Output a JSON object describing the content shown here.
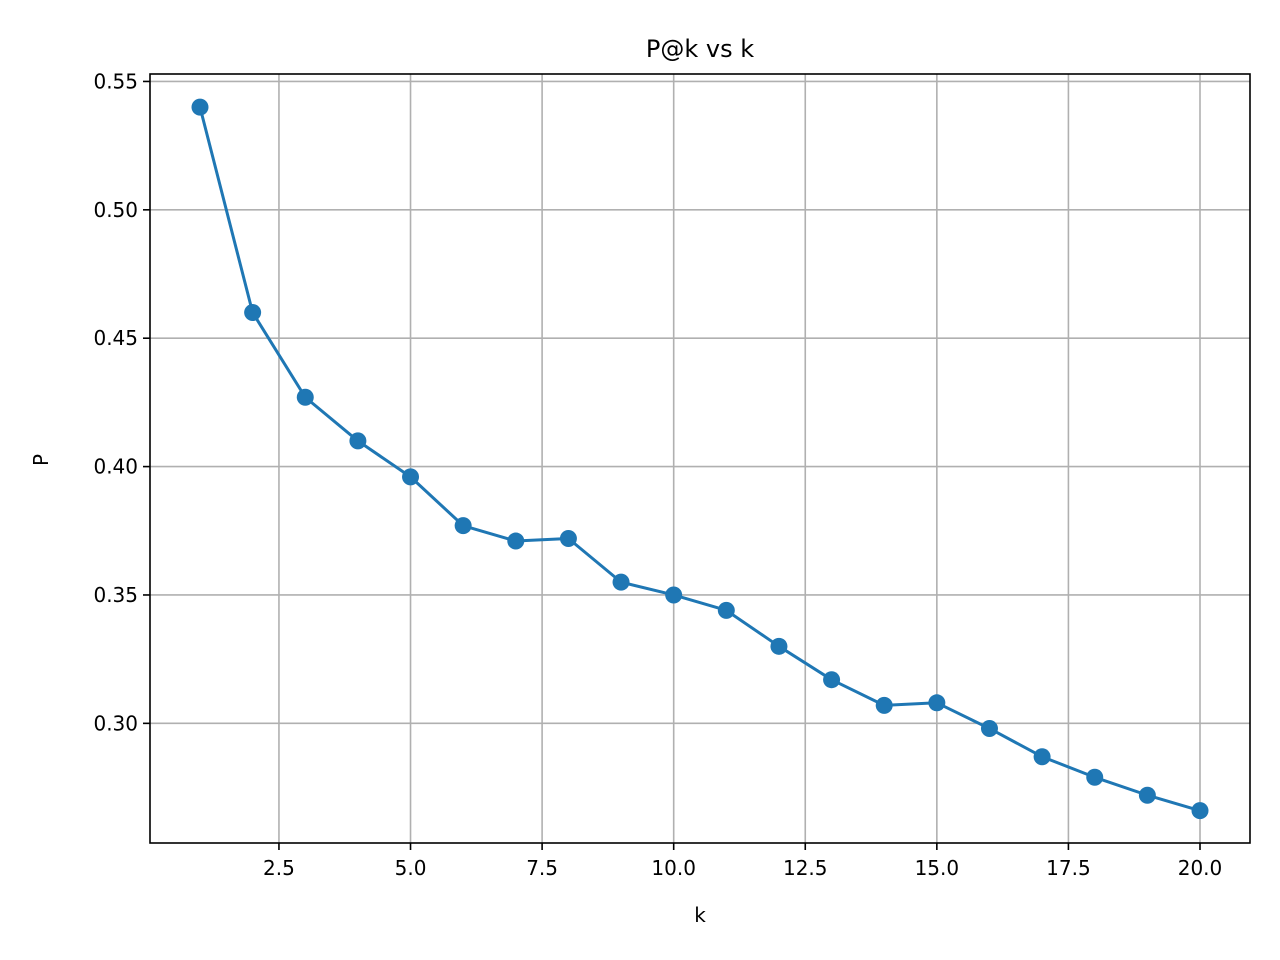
{
  "chart_data": {
    "type": "line",
    "title": "P@k vs k",
    "xlabel": "k",
    "ylabel": "P",
    "xlim": [
      0.05,
      20.95
    ],
    "ylim": [
      0.2534,
      0.5529
    ],
    "grid": true,
    "xticks": [
      2.5,
      5.0,
      7.5,
      10.0,
      12.5,
      15.0,
      17.5,
      20.0
    ],
    "xtick_labels": [
      "2.5",
      "5.0",
      "7.5",
      "10.0",
      "12.5",
      "15.0",
      "17.5",
      "20.0"
    ],
    "yticks": [
      0.3,
      0.35,
      0.4,
      0.45,
      0.5,
      0.55
    ],
    "ytick_labels": [
      "0.30",
      "0.35",
      "0.40",
      "0.45",
      "0.50",
      "0.55"
    ],
    "series": [
      {
        "color": "#1f77b4",
        "marker": "circle",
        "x": [
          1,
          2,
          3,
          4,
          5,
          6,
          7,
          8,
          9,
          10,
          11,
          12,
          13,
          14,
          15,
          16,
          17,
          18,
          19,
          20
        ],
        "y": [
          0.54,
          0.46,
          0.427,
          0.41,
          0.396,
          0.377,
          0.371,
          0.372,
          0.355,
          0.35,
          0.344,
          0.33,
          0.317,
          0.307,
          0.308,
          0.298,
          0.287,
          0.279,
          0.272,
          0.266
        ]
      }
    ]
  }
}
